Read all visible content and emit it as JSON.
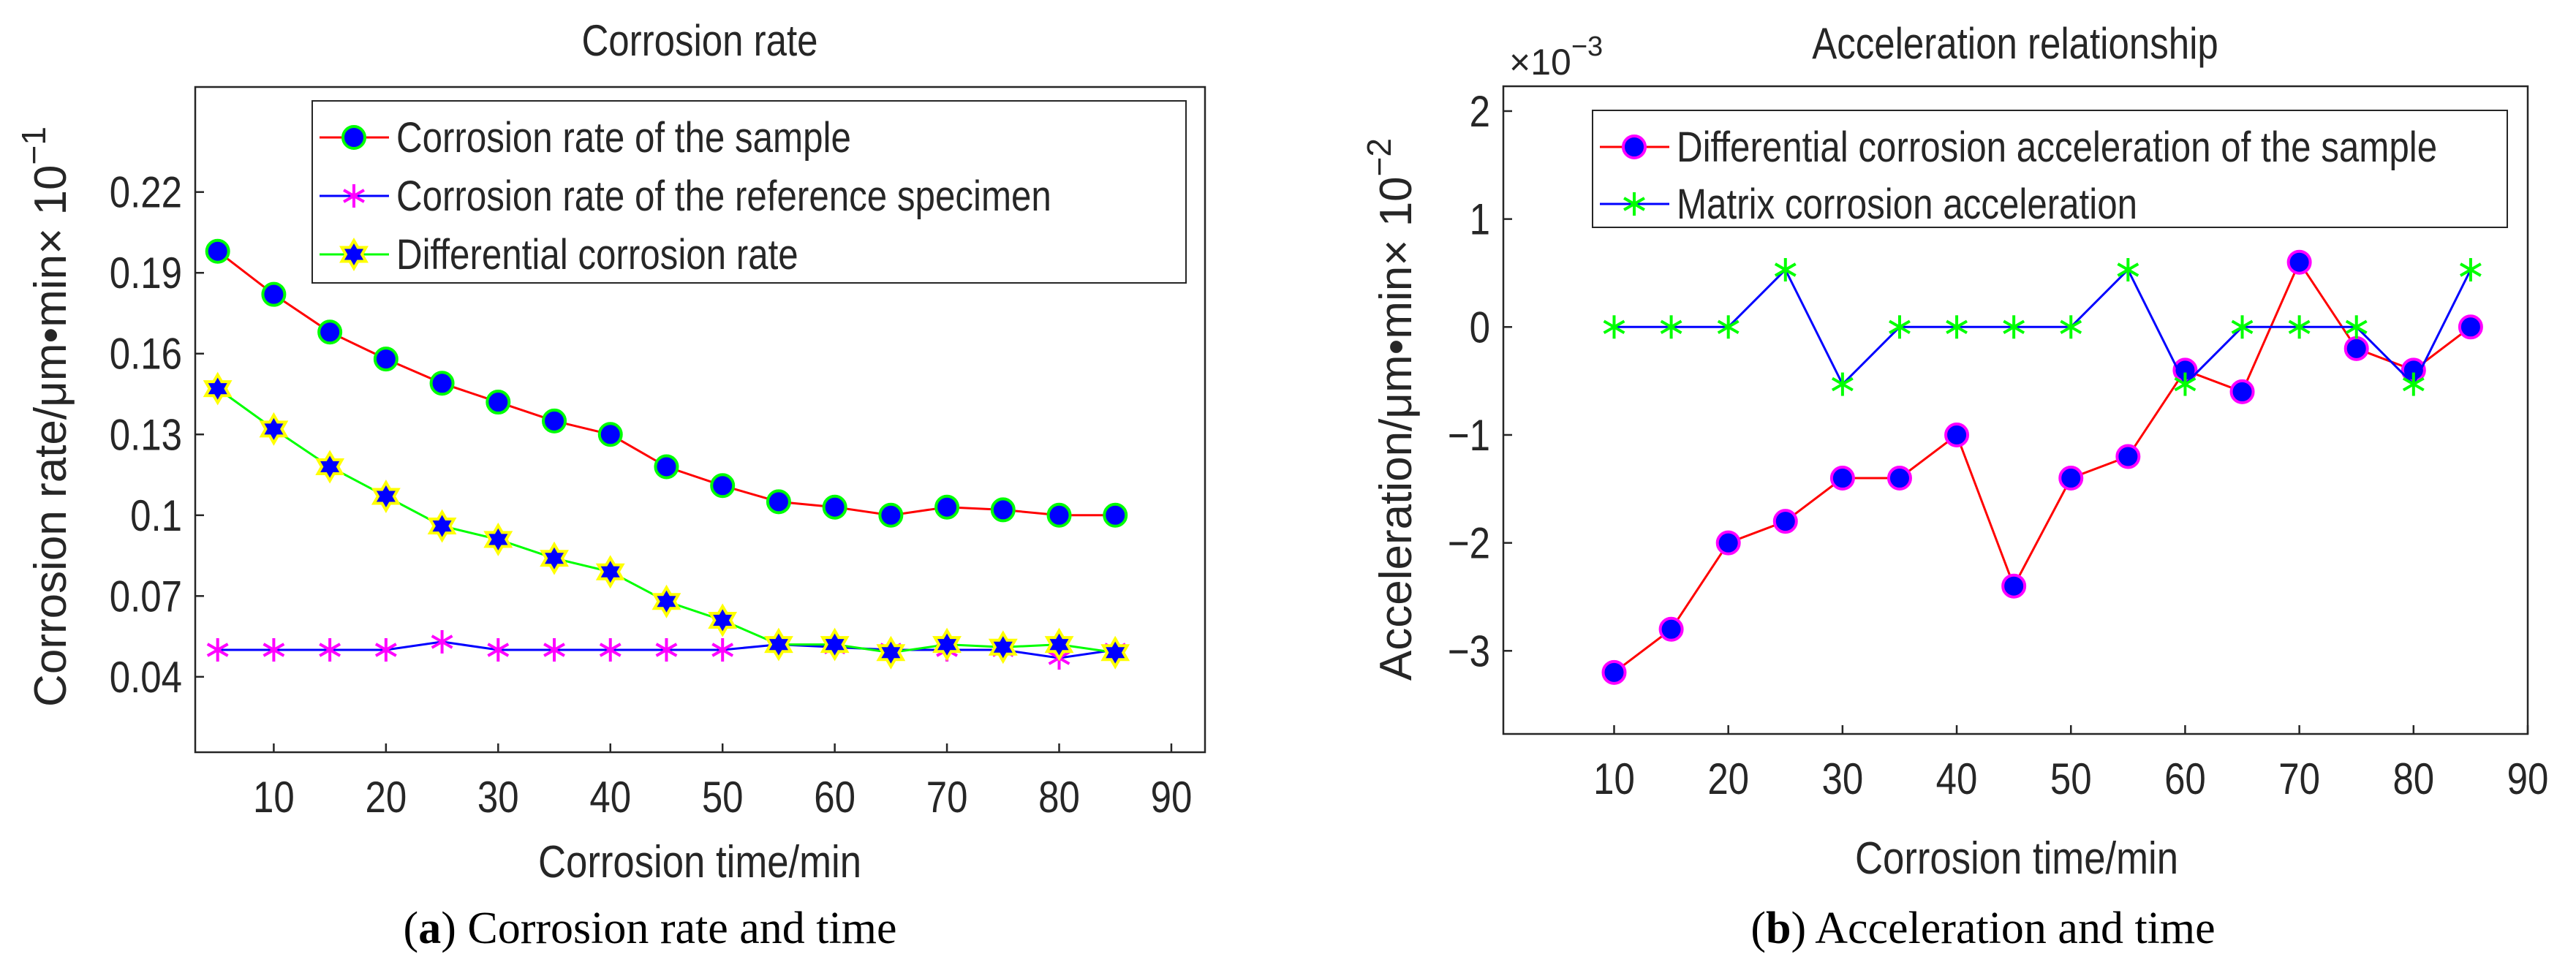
{
  "chart_data": [
    {
      "type": "line",
      "title": "Corrosion rate",
      "xlabel": "Corrosion time/min",
      "ylabel": "Corrosion rate/μm•min",
      "ylabel_multiplier": "× 10",
      "ylabel_exponent": "−1",
      "caption_letter": "a",
      "caption_text": " Corrosion rate and time",
      "xlim": [
        3,
        93
      ],
      "ylim": [
        0.012,
        0.259
      ],
      "xticks": [
        10,
        20,
        30,
        40,
        50,
        60,
        70,
        80,
        90
      ],
      "yticks": [
        0.04,
        0.07,
        0.1,
        0.13,
        0.16,
        0.19,
        0.22
      ],
      "ytick_labels": [
        "0.04",
        "0.07",
        "0.1",
        "0.13",
        "0.16",
        "0.19",
        "0.22"
      ],
      "legend_position": "top-right",
      "x": [
        5,
        10,
        15,
        20,
        25,
        30,
        35,
        40,
        45,
        50,
        55,
        60,
        65,
        70,
        75,
        80,
        85
      ],
      "series": [
        {
          "name": "Corrosion rate of the sample",
          "line_color": "#ff0000",
          "marker": "circle",
          "marker_fill": "#0000ff",
          "marker_edge": "#00ff00",
          "values": [
            0.198,
            0.182,
            0.168,
            0.158,
            0.149,
            0.142,
            0.135,
            0.13,
            0.118,
            0.111,
            0.105,
            0.103,
            0.1,
            0.103,
            0.102,
            0.1,
            0.1
          ]
        },
        {
          "name": "Corrosion rate of the reference specimen",
          "line_color": "#0000ff",
          "marker": "asterisk",
          "marker_fill": "none",
          "marker_edge": "#ff00ff",
          "values": [
            0.05,
            0.05,
            0.05,
            0.05,
            0.053,
            0.05,
            0.05,
            0.05,
            0.05,
            0.05,
            0.052,
            0.051,
            0.05,
            0.05,
            0.05,
            0.047,
            0.05
          ]
        },
        {
          "name": "Differential corrosion rate",
          "line_color": "#00ff00",
          "marker": "hexagram",
          "marker_fill": "#0000ff",
          "marker_edge": "#ffff00",
          "values": [
            0.147,
            0.132,
            0.118,
            0.107,
            0.096,
            0.091,
            0.084,
            0.079,
            0.068,
            0.061,
            0.052,
            0.052,
            0.049,
            0.052,
            0.051,
            0.052,
            0.049
          ]
        }
      ]
    },
    {
      "type": "line",
      "title": "Acceleration relationship",
      "xlabel": "Corrosion time/min",
      "ylabel": "Acceleration/μm•min",
      "ylabel_multiplier": "× 10",
      "ylabel_exponent": "−2",
      "axis_multiplier": "×10",
      "axis_exponent": "−3",
      "caption_letter": "b",
      "caption_text": " Acceleration and time",
      "xlim": [
        0.3,
        90
      ],
      "ylim": [
        -3.77,
        2.23
      ],
      "xticks": [
        10,
        20,
        30,
        40,
        50,
        60,
        70,
        80,
        90
      ],
      "yticks": [
        -3,
        -2,
        -1,
        0,
        1,
        2
      ],
      "ytick_labels": [
        "−3",
        "−2",
        "−1",
        "0",
        "1",
        "2"
      ],
      "legend_position": "top-right",
      "x": [
        10,
        15,
        20,
        25,
        30,
        35,
        40,
        45,
        50,
        55,
        60,
        65,
        70,
        75,
        80,
        85
      ],
      "series": [
        {
          "name": "Differential corrosion acceleration of the sample",
          "line_color": "#ff0000",
          "marker": "circle",
          "marker_fill": "#0000ff",
          "marker_edge": "#ff00ff",
          "values": [
            -3.2,
            -2.8,
            -2.0,
            -1.8,
            -1.4,
            -1.4,
            -1.0,
            -2.4,
            -1.4,
            -1.2,
            -0.4,
            -0.6,
            0.6,
            -0.2,
            -0.4,
            0.0
          ]
        },
        {
          "name": "Matrix corrosion acceleration",
          "line_color": "#0000ff",
          "marker": "asterisk",
          "marker_fill": "none",
          "marker_edge": "#00ff00",
          "values": [
            0,
            0,
            0,
            0.53,
            -0.53,
            0,
            0,
            0,
            0,
            0.53,
            -0.53,
            0,
            0,
            0,
            -0.53,
            0.53
          ]
        }
      ]
    }
  ]
}
